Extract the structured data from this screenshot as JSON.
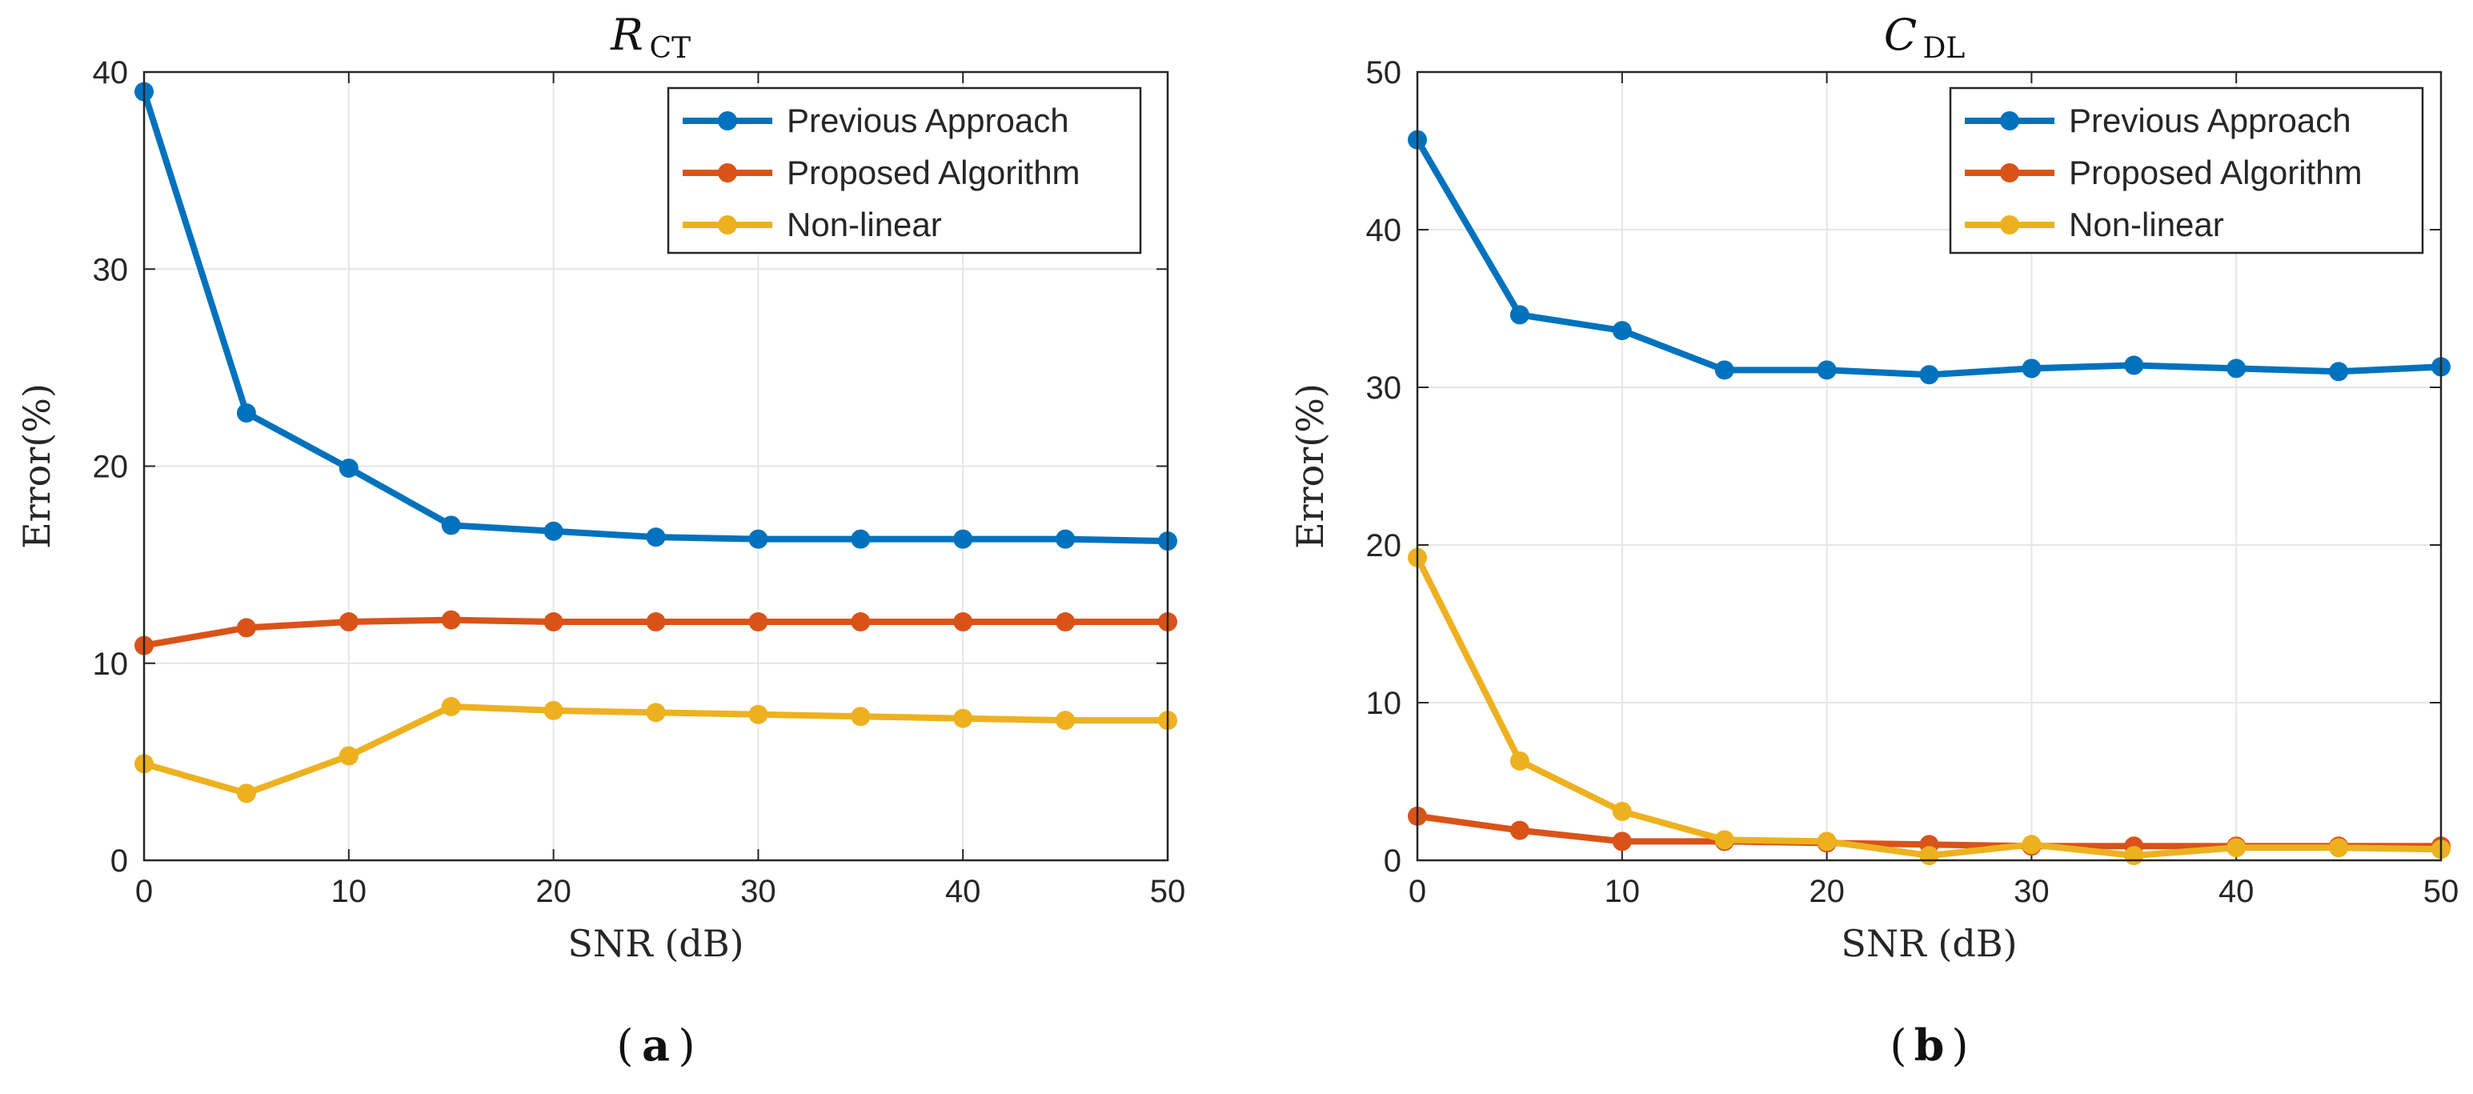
{
  "chart_data": [
    {
      "type": "line",
      "title": "R",
      "title_subscript": "CT",
      "xlabel": "SNR (dB)",
      "ylabel": "Error(%)",
      "caption": "a",
      "x": [
        0,
        5,
        10,
        15,
        20,
        25,
        30,
        35,
        40,
        45,
        50
      ],
      "xlim": [
        0,
        50
      ],
      "ylim": [
        0,
        40
      ],
      "xticks": [
        "0",
        "10",
        "20",
        "30",
        "40",
        "50"
      ],
      "yticks": [
        "0",
        "10",
        "20",
        "30",
        "40"
      ],
      "grid": true,
      "legend_position": "top-right",
      "series": [
        {
          "name": "Previous Approach",
          "color": "#0072BD",
          "values": [
            39.0,
            22.7,
            19.9,
            17.0,
            16.7,
            16.4,
            16.3,
            16.3,
            16.3,
            16.3,
            16.2
          ]
        },
        {
          "name": "Proposed Algorithm",
          "color": "#D95319",
          "values": [
            10.9,
            11.8,
            12.1,
            12.2,
            12.1,
            12.1,
            12.1,
            12.1,
            12.1,
            12.1,
            12.1
          ]
        },
        {
          "name": "Non-linear",
          "color": "#EDB120",
          "values": [
            4.9,
            3.4,
            5.3,
            7.8,
            7.6,
            7.5,
            7.4,
            7.3,
            7.2,
            7.1,
            7.1
          ]
        }
      ]
    },
    {
      "type": "line",
      "title": "C",
      "title_subscript": "DL",
      "xlabel": "SNR (dB)",
      "ylabel": "Error(%)",
      "caption": "b",
      "x": [
        0,
        5,
        10,
        15,
        20,
        25,
        30,
        35,
        40,
        45,
        50
      ],
      "xlim": [
        0,
        50
      ],
      "ylim": [
        0,
        50
      ],
      "xticks": [
        "0",
        "10",
        "20",
        "30",
        "40",
        "50"
      ],
      "yticks": [
        "0",
        "10",
        "20",
        "30",
        "40",
        "50"
      ],
      "grid": true,
      "legend_position": "top-right",
      "series": [
        {
          "name": "Previous Approach",
          "color": "#0072BD",
          "values": [
            45.7,
            34.6,
            33.6,
            31.1,
            31.1,
            30.8,
            31.2,
            31.4,
            31.2,
            31.0,
            31.3
          ]
        },
        {
          "name": "Proposed Algorithm",
          "color": "#D95319",
          "values": [
            2.8,
            1.9,
            1.2,
            1.2,
            1.1,
            1.0,
            0.9,
            0.9,
            0.9,
            0.9,
            0.9
          ]
        },
        {
          "name": "Non-linear",
          "color": "#EDB120",
          "values": [
            19.2,
            6.3,
            3.1,
            1.3,
            1.2,
            0.3,
            1.0,
            0.3,
            0.8,
            0.8,
            0.7
          ]
        }
      ]
    }
  ]
}
